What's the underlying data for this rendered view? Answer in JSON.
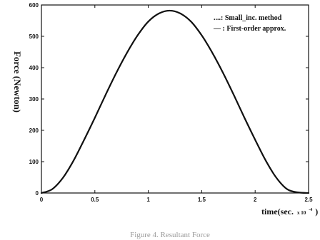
{
  "chart_data": {
    "type": "line",
    "ylabel": "Force (Newton)",
    "xlabel": "time(sec.",
    "xlabel_multiplier": "x 10",
    "xlabel_exponent": "-4",
    "xlabel_close": ")",
    "xlim": [
      0,
      2.5
    ],
    "ylim": [
      0,
      600
    ],
    "xticks": [
      0,
      0.5,
      1,
      1.5,
      2,
      2.5
    ],
    "xtick_labels": [
      "0",
      "0.5",
      "1",
      "1.5",
      "2",
      "2.5"
    ],
    "yticks": [
      0,
      100,
      200,
      300,
      400,
      500,
      600
    ],
    "ytick_labels": [
      "0",
      "100",
      "200",
      "300",
      "400",
      "500",
      "600"
    ],
    "grid": false,
    "legend_position": "top-right",
    "series": [
      {
        "name": "Small_inc. method",
        "legend_text": "....: Small_inc. method",
        "style": "dotted",
        "x": [
          0,
          0.1,
          0.2,
          0.3,
          0.4,
          0.5,
          0.6,
          0.7,
          0.8,
          0.9,
          1.0,
          1.1,
          1.2,
          1.3,
          1.4,
          1.5,
          1.6,
          1.7,
          1.8,
          1.9,
          2.0,
          2.1,
          2.2,
          2.3,
          2.4,
          2.5
        ],
        "y": [
          0,
          12,
          48,
          103,
          170,
          240,
          313,
          383,
          447,
          503,
          547,
          573,
          582,
          573,
          547,
          503,
          447,
          383,
          313,
          240,
          170,
          103,
          48,
          12,
          2,
          0
        ]
      },
      {
        "name": "First-order approx.",
        "legend_text": "—  : First-order approx.",
        "style": "solid",
        "x": [
          0,
          0.1,
          0.2,
          0.3,
          0.4,
          0.5,
          0.6,
          0.7,
          0.8,
          0.9,
          1.0,
          1.1,
          1.2,
          1.3,
          1.4,
          1.5,
          1.6,
          1.7,
          1.8,
          1.9,
          2.0,
          2.1,
          2.2,
          2.3,
          2.4,
          2.5
        ],
        "y": [
          0,
          12,
          48,
          103,
          170,
          240,
          313,
          383,
          447,
          503,
          547,
          573,
          582,
          573,
          547,
          503,
          447,
          383,
          313,
          240,
          170,
          103,
          48,
          12,
          2,
          0
        ]
      }
    ],
    "caption": "Figure 4. Resultant Force"
  }
}
